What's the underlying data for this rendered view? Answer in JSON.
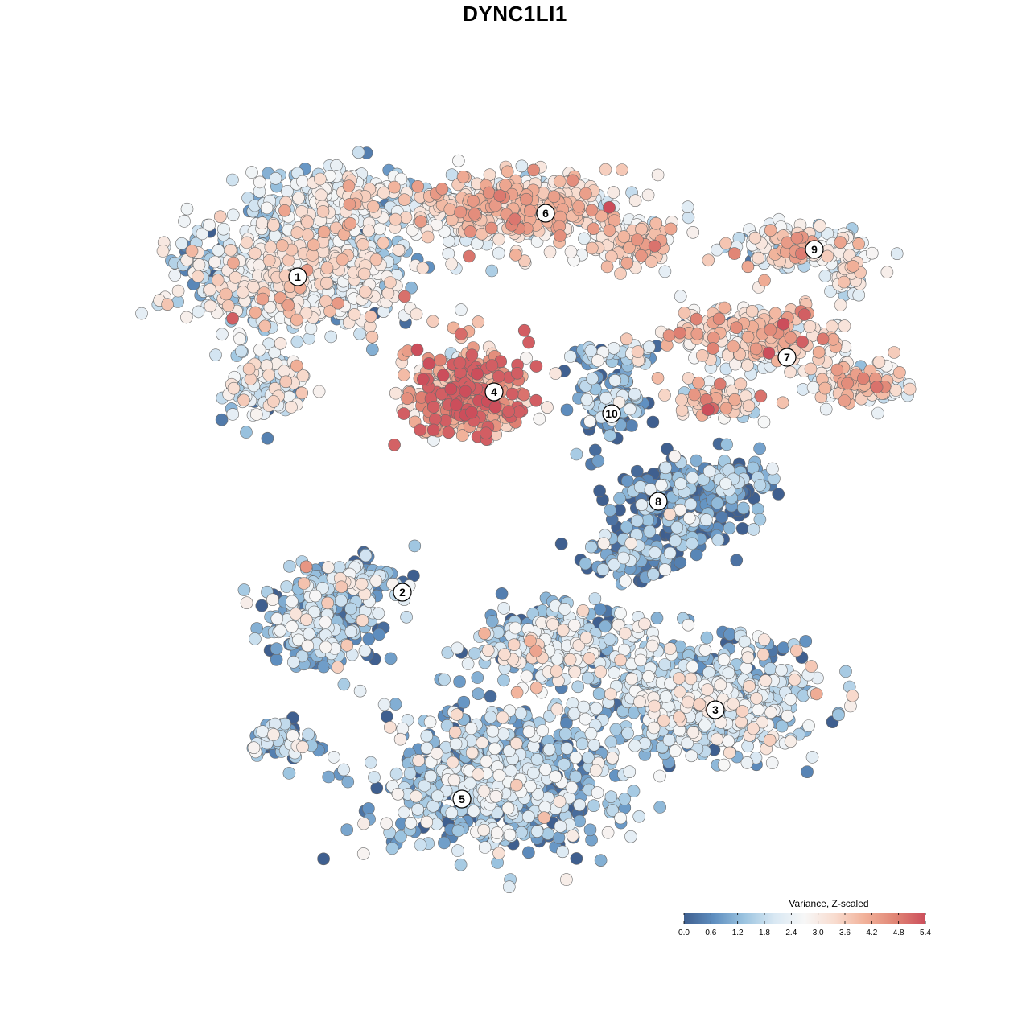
{
  "chart_data": {
    "type": "scatter",
    "title": "DYNC1LI1",
    "xlabel": "",
    "ylabel": "",
    "legend_title": "Variance, Z-scaled",
    "legend_placement": "bottom-right",
    "grid": false,
    "color_scale": {
      "min": 0.0,
      "max": 5.4,
      "ticks": [
        "0.0",
        "0.6",
        "1.2",
        "1.8",
        "2.4",
        "3.0",
        "3.6",
        "4.2",
        "4.8",
        "5.4"
      ],
      "colors": [
        "#3f5f8f",
        "#5f8fc0",
        "#9cc4e0",
        "#d9e8f3",
        "#f7f7f7",
        "#f8dccf",
        "#f1b199",
        "#e08575",
        "#cc4e5b"
      ]
    },
    "clusters": [
      {
        "label": "1",
        "mean": 2.1
      },
      {
        "label": "2",
        "mean": 1.2
      },
      {
        "label": "3",
        "mean": 1.6
      },
      {
        "label": "4",
        "mean": 3.8
      },
      {
        "label": "5",
        "mean": 1.3
      },
      {
        "label": "6",
        "mean": 3.0
      },
      {
        "label": "7",
        "mean": 3.1
      },
      {
        "label": "8",
        "mean": 0.6
      },
      {
        "label": "9",
        "mean": 2.6
      },
      {
        "label": "10",
        "mean": 1.1
      }
    ]
  }
}
